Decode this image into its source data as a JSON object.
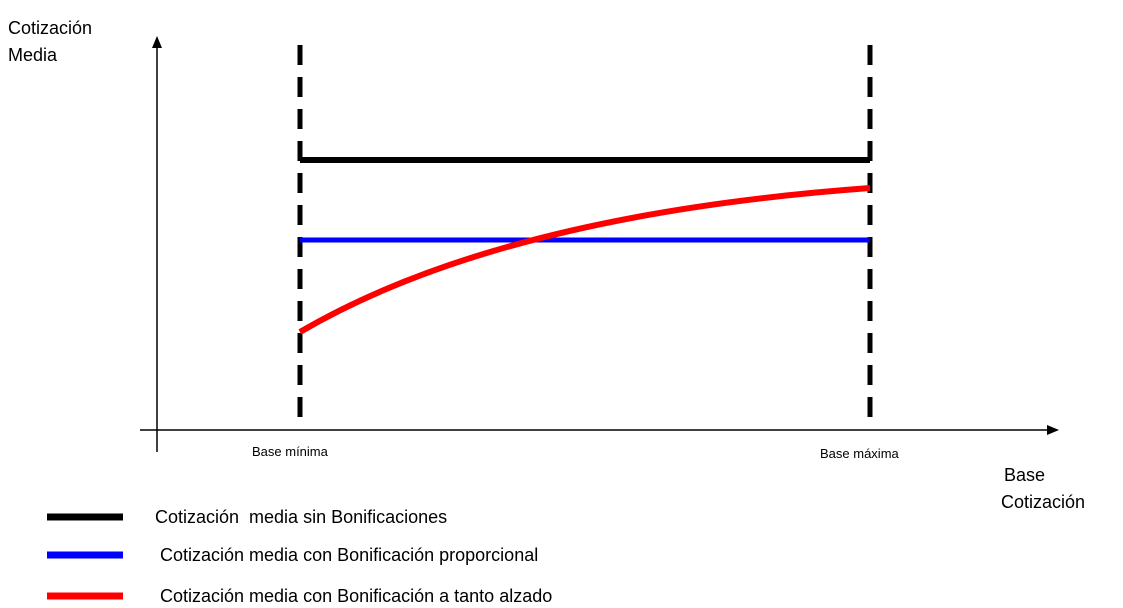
{
  "y_axis_label": [
    "Cotización",
    "Media"
  ],
  "x_axis_label": [
    "Base",
    "Cotización"
  ],
  "x_markers": [
    "Base mínima",
    "Base máxima"
  ],
  "legend": [
    "Cotización  media sin Bonificaciones",
    "Cotización media con Bonificación proporcional",
    "Cotización media con Bonificación a tanto alzado"
  ]
}
